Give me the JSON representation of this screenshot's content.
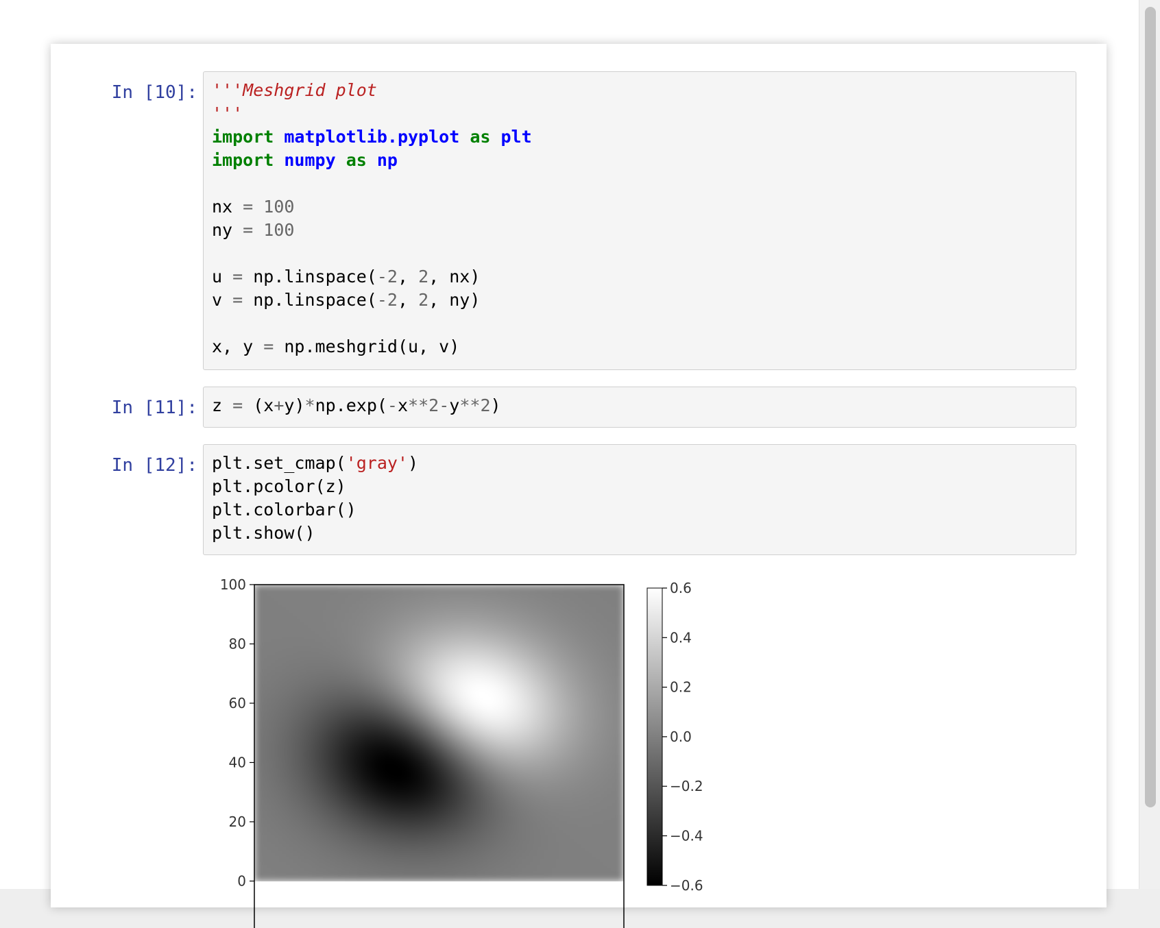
{
  "cells": [
    {
      "prompt": "In [10]:",
      "lines": [
        [
          {
            "t": "'''Meshgrid plot",
            "c": "doc"
          }
        ],
        [
          {
            "t": "'''",
            "c": "doc"
          }
        ],
        [
          {
            "t": "import",
            "c": "kw"
          },
          {
            "t": " "
          },
          {
            "t": "matplotlib.pyplot",
            "c": "mod"
          },
          {
            "t": " "
          },
          {
            "t": "as",
            "c": "kw"
          },
          {
            "t": " "
          },
          {
            "t": "plt",
            "c": "mod"
          }
        ],
        [
          {
            "t": "import",
            "c": "kw"
          },
          {
            "t": " "
          },
          {
            "t": "numpy",
            "c": "mod"
          },
          {
            "t": " "
          },
          {
            "t": "as",
            "c": "kw"
          },
          {
            "t": " "
          },
          {
            "t": "np",
            "c": "mod"
          }
        ],
        [],
        [
          {
            "t": "nx "
          },
          {
            "t": "=",
            "c": "op"
          },
          {
            "t": " "
          },
          {
            "t": "100",
            "c": "num"
          }
        ],
        [
          {
            "t": "ny "
          },
          {
            "t": "=",
            "c": "op"
          },
          {
            "t": " "
          },
          {
            "t": "100",
            "c": "num"
          }
        ],
        [],
        [
          {
            "t": "u "
          },
          {
            "t": "=",
            "c": "op"
          },
          {
            "t": " np.linspace("
          },
          {
            "t": "-2",
            "c": "num"
          },
          {
            "t": ", "
          },
          {
            "t": "2",
            "c": "num"
          },
          {
            "t": ", nx)"
          }
        ],
        [
          {
            "t": "v "
          },
          {
            "t": "=",
            "c": "op"
          },
          {
            "t": " np.linspace("
          },
          {
            "t": "-2",
            "c": "num"
          },
          {
            "t": ", "
          },
          {
            "t": "2",
            "c": "num"
          },
          {
            "t": ", ny)"
          }
        ],
        [],
        [
          {
            "t": "x, y "
          },
          {
            "t": "=",
            "c": "op"
          },
          {
            "t": " np.meshgrid(u, v)"
          }
        ]
      ]
    },
    {
      "prompt": "In [11]:",
      "lines": [
        [
          {
            "t": "z "
          },
          {
            "t": "=",
            "c": "op"
          },
          {
            "t": " (x"
          },
          {
            "t": "+",
            "c": "op"
          },
          {
            "t": "y)"
          },
          {
            "t": "*",
            "c": "op"
          },
          {
            "t": "np.exp("
          },
          {
            "t": "-",
            "c": "op"
          },
          {
            "t": "x"
          },
          {
            "t": "**",
            "c": "op"
          },
          {
            "t": "2",
            "c": "num"
          },
          {
            "t": "-",
            "c": "op"
          },
          {
            "t": "y"
          },
          {
            "t": "**",
            "c": "op"
          },
          {
            "t": "2",
            "c": "num"
          },
          {
            "t": ")"
          }
        ]
      ]
    },
    {
      "prompt": "In [12]:",
      "lines": [
        [
          {
            "t": "plt.set_cmap("
          },
          {
            "t": "'gray'",
            "c": "str"
          },
          {
            "t": ")"
          }
        ],
        [
          {
            "t": "plt.pcolor(z)"
          }
        ],
        [
          {
            "t": "plt.colorbar()"
          }
        ],
        [
          {
            "t": "plt.show()"
          }
        ]
      ]
    }
  ],
  "chart_data": {
    "type": "heatmap",
    "function": "(x+y)*exp(-x**2-y**2)",
    "colormap": "gray",
    "grid_size": [
      100,
      100
    ],
    "domain": {
      "u": [
        -2,
        2
      ],
      "v": [
        -2,
        2
      ]
    },
    "xlim": [
      0,
      100
    ],
    "ylim": [
      0,
      100
    ],
    "yticks": [
      "100",
      "80",
      "60",
      "40",
      "20",
      "0"
    ],
    "ytick_values": [
      100,
      80,
      60,
      40,
      20,
      0
    ],
    "colorbar": {
      "range": [
        -0.6,
        0.6
      ],
      "ticks": [
        "0.6",
        "0.4",
        "0.2",
        "0.0",
        "−0.2",
        "−0.4",
        "−0.6"
      ],
      "tick_values": [
        0.6,
        0.4,
        0.2,
        0.0,
        -0.2,
        -0.4,
        -0.6
      ]
    }
  }
}
